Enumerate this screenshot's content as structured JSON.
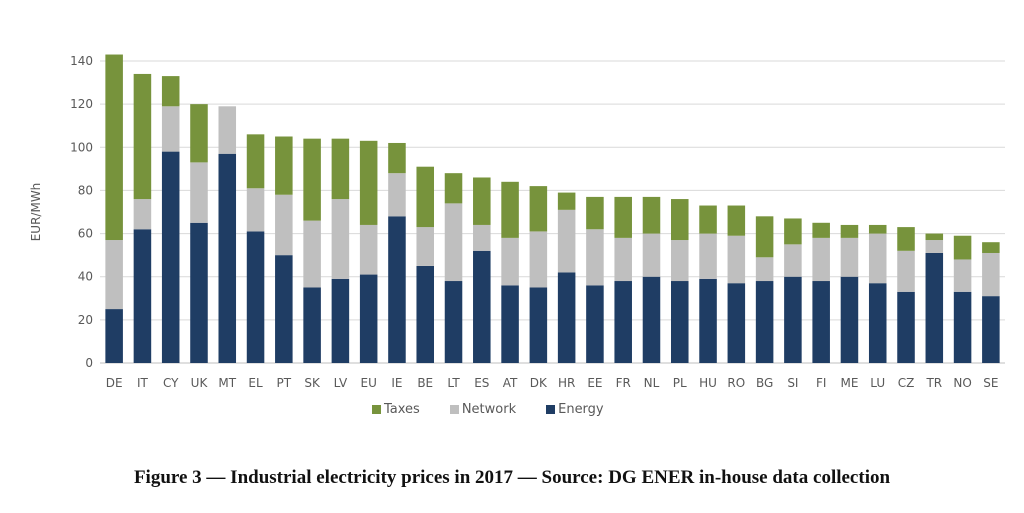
{
  "chart_data": {
    "type": "bar",
    "stacked": true,
    "title": "",
    "xlabel": "",
    "ylabel": "EUR/MWh",
    "ylim": [
      0,
      140
    ],
    "yticks": [
      0,
      20,
      40,
      60,
      80,
      100,
      120,
      140
    ],
    "grid": true,
    "legend_position": "bottom",
    "categories": [
      "DE",
      "IT",
      "CY",
      "UK",
      "MT",
      "EL",
      "PT",
      "SK",
      "LV",
      "EU",
      "IE",
      "BE",
      "LT",
      "ES",
      "AT",
      "DK",
      "HR",
      "EE",
      "FR",
      "NL",
      "PL",
      "HU",
      "RO",
      "BG",
      "SI",
      "FI",
      "ME",
      "LU",
      "CZ",
      "TR",
      "NO",
      "SE"
    ],
    "series": [
      {
        "name": "Energy",
        "color": "#1f3d64",
        "values": [
          25,
          62,
          98,
          65,
          97,
          61,
          50,
          35,
          39,
          41,
          68,
          45,
          38,
          52,
          36,
          35,
          42,
          36,
          38,
          40,
          38,
          39,
          37,
          38,
          40,
          38,
          40,
          37,
          33,
          51,
          33,
          31
        ]
      },
      {
        "name": "Network",
        "color": "#bfbfbf",
        "values": [
          32,
          14,
          21,
          28,
          22,
          20,
          28,
          31,
          37,
          23,
          20,
          18,
          36,
          12,
          22,
          26,
          29,
          26,
          20,
          20,
          19,
          21,
          22,
          11,
          15,
          20,
          18,
          23,
          19,
          6,
          15,
          20
        ]
      },
      {
        "name": "Taxes",
        "color": "#77933c",
        "values": [
          86,
          58,
          14,
          27,
          0,
          25,
          27,
          38,
          28,
          39,
          14,
          28,
          14,
          22,
          26,
          21,
          8,
          15,
          19,
          17,
          19,
          13,
          14,
          19,
          12,
          7,
          6,
          4,
          11,
          3,
          11,
          5
        ]
      }
    ],
    "legend": [
      {
        "label": "Taxes",
        "color": "#77933c"
      },
      {
        "label": "Network",
        "color": "#bfbfbf"
      },
      {
        "label": "Energy",
        "color": "#1f3d64"
      }
    ]
  },
  "caption": "Figure 3 — Industrial electricity prices in 2017 — Source: DG ENER in-house data collection"
}
